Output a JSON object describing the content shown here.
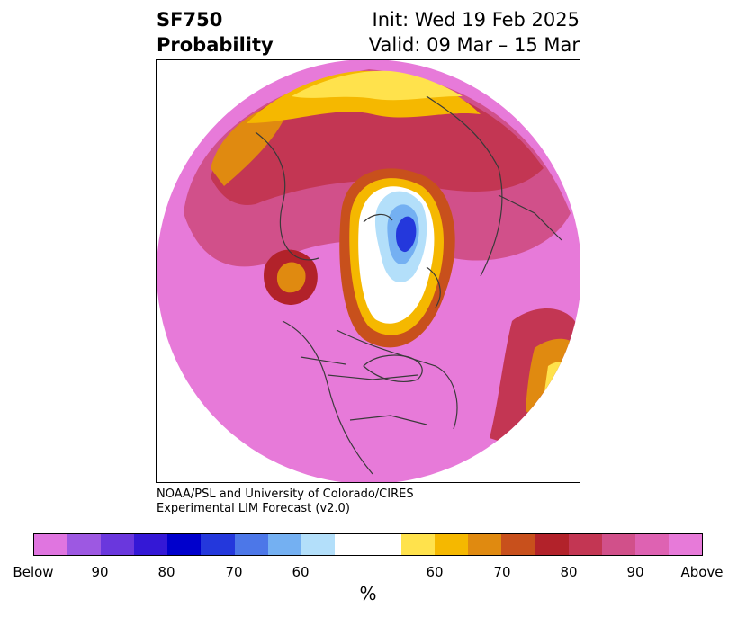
{
  "title": {
    "left_line1": "SF750",
    "left_line2": "Probability",
    "right_line1": "Init: Wed 19 Feb 2025",
    "right_line2": "Valid: 09 Mar – 15 Mar"
  },
  "credit": {
    "line1": "NOAA/PSL and University of Colorado/CIRES",
    "line2": "Experimental LIM Forecast (v2.0)"
  },
  "colorbar": {
    "unit": "%",
    "ticks": [
      "Below",
      "90",
      "80",
      "70",
      "60",
      "60",
      "70",
      "80",
      "90",
      "Above"
    ],
    "below_colors": [
      "#e075e0",
      "#9d58e2",
      "#6a37dd",
      "#3418d6",
      "#0000cc",
      "#2438dc",
      "#4c77e8",
      "#74b0f2",
      "#b3dffa"
    ],
    "neutral_color": "#ffffff",
    "above_colors": [
      "#ffe24c",
      "#f5b800",
      "#e08a10",
      "#c8501c",
      "#b2222a",
      "#c33653",
      "#d1508a",
      "#de62b2",
      "#e77ad9"
    ]
  },
  "map": {
    "projection": "north-polar-stereographic",
    "region": "Northern Hemisphere",
    "dominant_signal": "Above"
  }
}
